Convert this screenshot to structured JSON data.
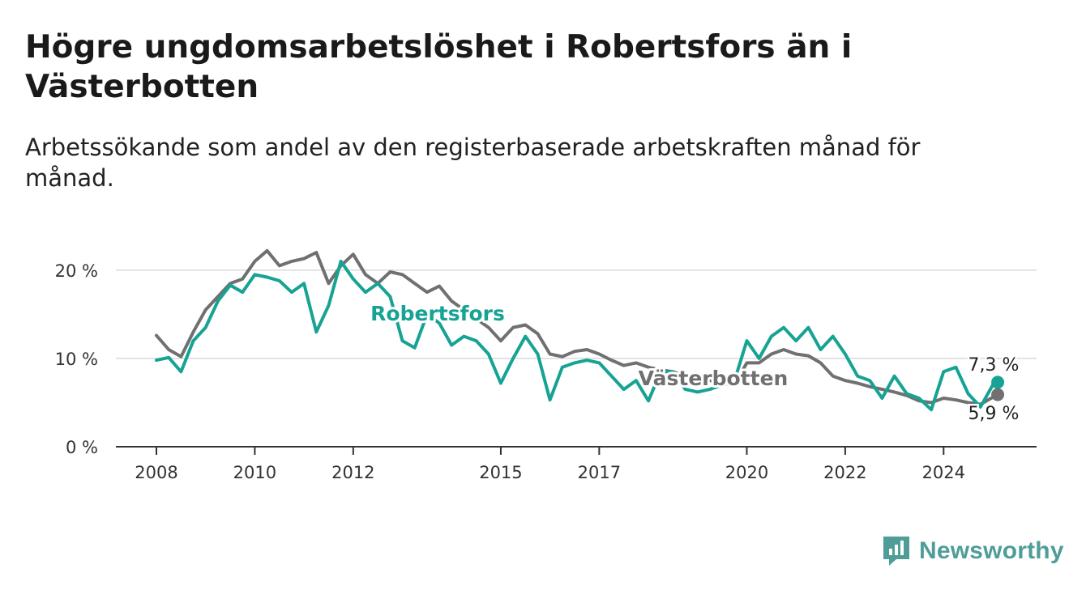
{
  "title": "Högre ungdomsarbetslöshet i Robertsfors än i Västerbotten",
  "subtitle": "Arbetssökande som andel av den registerbaserade arbetskraften månad för månad.",
  "brand": {
    "name": "Newsworthy",
    "icon": "newsworthy-logo-icon",
    "color": "#4f9d98"
  },
  "chart_data": {
    "type": "line",
    "title": "Högre ungdomsarbetslöshet i Robertsfors än i Västerbotten",
    "xlabel": "",
    "ylabel": "",
    "ylim": [
      0,
      22
    ],
    "xlim": [
      2007.5,
      2025.4
    ],
    "y_ticks": [
      0,
      10,
      20
    ],
    "y_tick_labels": [
      "0 %",
      "10 %",
      "20 %"
    ],
    "x_ticks": [
      2008,
      2010,
      2012,
      2015,
      2017,
      2020,
      2022,
      2024
    ],
    "x_tick_labels": [
      "2008",
      "2010",
      "2012",
      "2015",
      "2017",
      "2020",
      "2022",
      "2024"
    ],
    "grid": true,
    "legend": "inline labels on lines",
    "series": [
      {
        "name": "Robertsfors",
        "color": "#16a394",
        "x": [
          2008.0,
          2008.25,
          2008.5,
          2008.75,
          2009.0,
          2009.25,
          2009.5,
          2009.75,
          2010.0,
          2010.25,
          2010.5,
          2010.75,
          2011.0,
          2011.25,
          2011.5,
          2011.75,
          2012.0,
          2012.25,
          2012.5,
          2012.75,
          2013.0,
          2013.25,
          2013.5,
          2013.75,
          2014.0,
          2014.25,
          2014.5,
          2014.75,
          2015.0,
          2015.25,
          2015.5,
          2015.75,
          2016.0,
          2016.25,
          2016.5,
          2016.75,
          2017.0,
          2017.25,
          2017.5,
          2017.75,
          2018.0,
          2018.25,
          2018.5,
          2018.75,
          2019.0,
          2019.25,
          2019.5,
          2019.75,
          2020.0,
          2020.25,
          2020.5,
          2020.75,
          2021.0,
          2021.25,
          2021.5,
          2021.75,
          2022.0,
          2022.25,
          2022.5,
          2022.75,
          2023.0,
          2023.25,
          2023.5,
          2023.75,
          2024.0,
          2024.25,
          2024.5,
          2024.75,
          2025.0,
          2025.1
        ],
        "values": [
          9.8,
          10.1,
          8.5,
          12.0,
          13.5,
          16.5,
          18.3,
          17.5,
          19.5,
          19.2,
          18.8,
          17.5,
          18.5,
          13.0,
          16.0,
          21.0,
          19.0,
          17.5,
          18.5,
          17.0,
          12.0,
          11.2,
          15.0,
          14.0,
          11.5,
          12.5,
          12.0,
          10.5,
          7.2,
          10.0,
          12.5,
          10.5,
          5.3,
          9.0,
          9.5,
          9.8,
          9.5,
          8.0,
          6.5,
          7.5,
          5.2,
          8.5,
          8.5,
          6.5,
          6.2,
          6.5,
          7.0,
          7.5,
          12.0,
          10.0,
          12.5,
          13.5,
          12.0,
          13.5,
          11.0,
          12.5,
          10.5,
          8.0,
          7.5,
          5.5,
          8.0,
          6.0,
          5.5,
          4.2,
          8.5,
          9.0,
          6.0,
          4.5,
          7.0,
          7.3
        ]
      },
      {
        "name": "Västerbotten",
        "color": "#707070",
        "x": [
          2008.0,
          2008.25,
          2008.5,
          2008.75,
          2009.0,
          2009.25,
          2009.5,
          2009.75,
          2010.0,
          2010.25,
          2010.5,
          2010.75,
          2011.0,
          2011.25,
          2011.5,
          2011.75,
          2012.0,
          2012.25,
          2012.5,
          2012.75,
          2013.0,
          2013.25,
          2013.5,
          2013.75,
          2014.0,
          2014.25,
          2014.5,
          2014.75,
          2015.0,
          2015.25,
          2015.5,
          2015.75,
          2016.0,
          2016.25,
          2016.5,
          2016.75,
          2017.0,
          2017.25,
          2017.5,
          2017.75,
          2018.0,
          2018.25,
          2018.5,
          2018.75,
          2019.0,
          2019.25,
          2019.5,
          2019.75,
          2020.0,
          2020.25,
          2020.5,
          2020.75,
          2021.0,
          2021.25,
          2021.5,
          2021.75,
          2022.0,
          2022.25,
          2022.5,
          2022.75,
          2023.0,
          2023.25,
          2023.5,
          2023.75,
          2024.0,
          2024.25,
          2024.5,
          2024.75,
          2025.0,
          2025.1
        ],
        "values": [
          12.6,
          11.0,
          10.2,
          13.0,
          15.5,
          17.0,
          18.5,
          19.0,
          21.0,
          22.2,
          20.5,
          21.0,
          21.3,
          22.0,
          18.5,
          20.5,
          21.8,
          19.5,
          18.5,
          19.8,
          19.5,
          18.5,
          17.5,
          18.2,
          16.5,
          15.5,
          14.5,
          13.5,
          12.0,
          13.5,
          13.8,
          12.8,
          10.5,
          10.2,
          10.8,
          11.0,
          10.5,
          9.8,
          9.2,
          9.5,
          9.0,
          8.7,
          8.5,
          8.0,
          7.8,
          7.5,
          7.2,
          7.0,
          9.5,
          9.5,
          10.5,
          11.0,
          10.5,
          10.3,
          9.5,
          8.0,
          7.5,
          7.2,
          6.8,
          6.5,
          6.2,
          5.8,
          5.2,
          5.0,
          5.5,
          5.3,
          5.0,
          4.8,
          5.6,
          5.9
        ]
      }
    ],
    "end_labels": {
      "Robertsfors": "7,3 %",
      "Västerbotten": "5,9 %"
    }
  }
}
